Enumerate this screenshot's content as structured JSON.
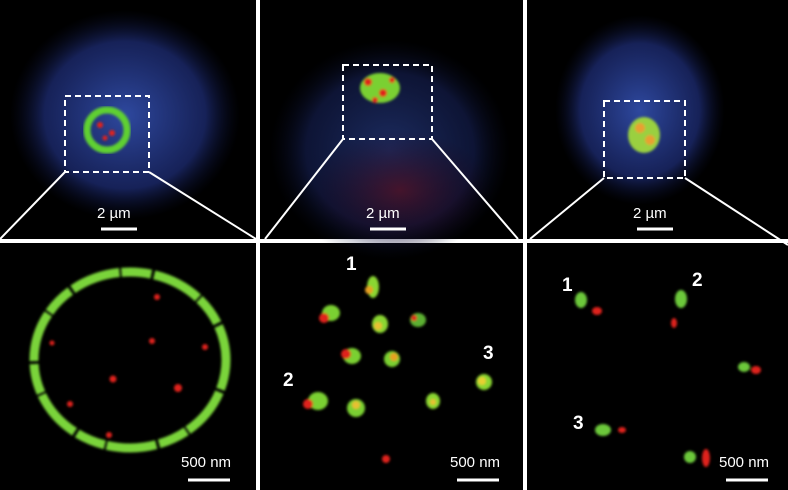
{
  "panels": {
    "top": [
      {
        "scale_label": "2 µm"
      },
      {
        "scale_label": "2 µm"
      },
      {
        "scale_label": "2 µm"
      }
    ],
    "bottom": [
      {
        "scale_label": "500 nm",
        "markers": []
      },
      {
        "scale_label": "500 nm",
        "markers": [
          "1",
          "2",
          "3"
        ]
      },
      {
        "scale_label": "500 nm",
        "markers": [
          "1",
          "2",
          "3"
        ]
      }
    ]
  },
  "colors": {
    "nucleus": "#1c2a6e",
    "green": "#6fd12e",
    "red": "#e0201a",
    "divider": "#ffffff"
  }
}
